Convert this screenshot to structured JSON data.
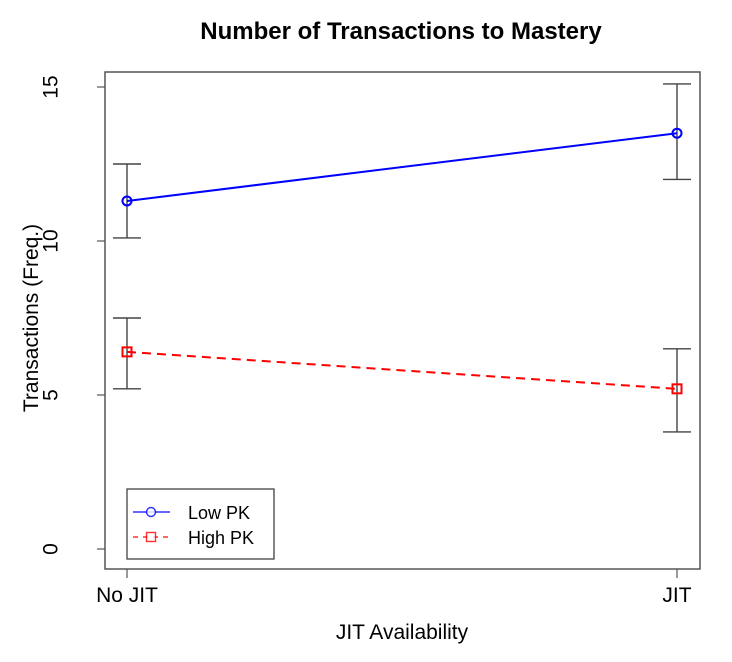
{
  "chart_data": {
    "type": "line",
    "title": "Number of Transactions to Mastery",
    "xlabel": "JIT Availability",
    "ylabel": "Transactions (Freq.)",
    "categories": [
      "No JIT",
      "JIT"
    ],
    "ylim": [
      0,
      15.5
    ],
    "yticks": [
      0,
      5,
      10,
      15
    ],
    "grid": false,
    "legend_position": "bottom-left",
    "series": [
      {
        "name": "Low PK",
        "color": "#0000ff",
        "line_style": "solid",
        "marker": "circle",
        "values": [
          11.3,
          13.5
        ],
        "error_upper": [
          12.5,
          15.1
        ],
        "error_lower": [
          10.1,
          12.0
        ]
      },
      {
        "name": "High PK",
        "color": "#ff0000",
        "line_style": "dashed",
        "marker": "square",
        "values": [
          6.4,
          5.2
        ],
        "error_upper": [
          7.5,
          6.5
        ],
        "error_lower": [
          5.2,
          3.8
        ]
      }
    ]
  },
  "legend": {
    "items": [
      "Low PK",
      "High PK"
    ]
  },
  "ytick_labels": [
    "0",
    "5",
    "10",
    "15"
  ]
}
